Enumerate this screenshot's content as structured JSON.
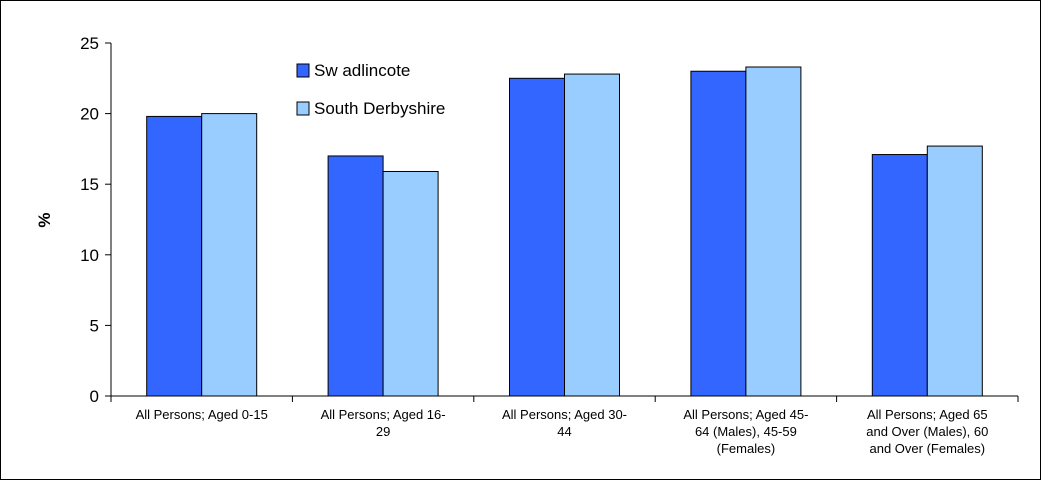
{
  "chart_data": {
    "type": "bar",
    "title": "",
    "xlabel": "",
    "ylabel": "%",
    "ylim": [
      0,
      25
    ],
    "yticks": [
      0,
      5,
      10,
      15,
      20,
      25
    ],
    "grid": false,
    "legend_position": "top-center",
    "categories": [
      [
        "All Persons; Aged 0-15"
      ],
      [
        "All Persons; Aged 16-",
        "29"
      ],
      [
        "All Persons; Aged 30-",
        "44"
      ],
      [
        "All Persons; Aged 45-",
        "64 (Males), 45-59",
        "(Females)"
      ],
      [
        "All Persons; Aged 65",
        "and Over (Males), 60",
        "and Over (Females)"
      ]
    ],
    "series": [
      {
        "name": "Sw adlincote",
        "color": "#3366FF",
        "values": [
          19.8,
          17.0,
          22.5,
          23.0,
          17.1
        ]
      },
      {
        "name": "South Derbyshire",
        "color": "#99CCFF",
        "values": [
          20.0,
          15.9,
          22.8,
          23.3,
          17.7
        ]
      }
    ]
  }
}
